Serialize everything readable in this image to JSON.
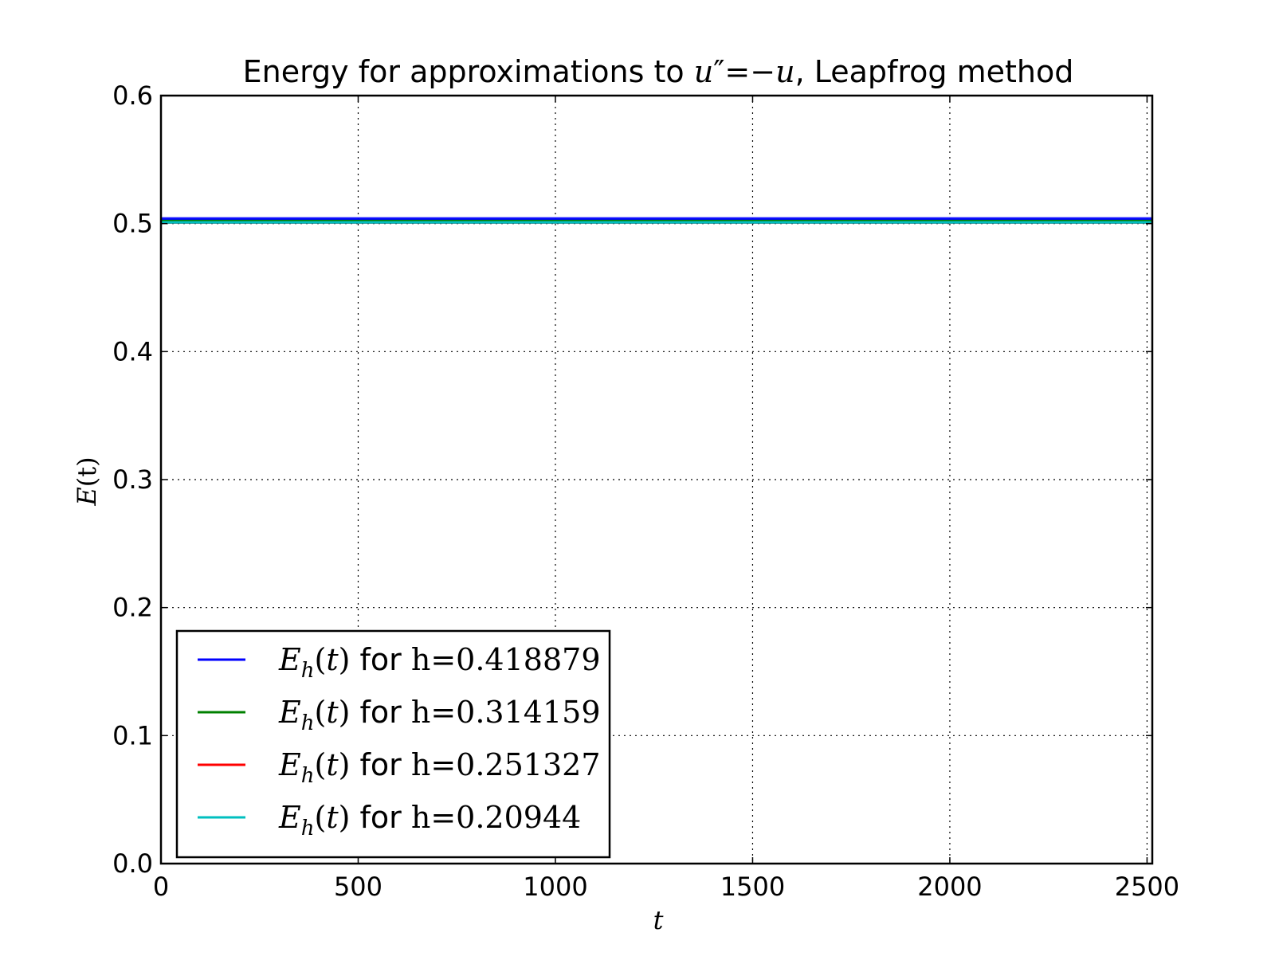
{
  "chart_data": {
    "type": "line",
    "title": {
      "prefix": "Energy for approximations to ",
      "eq_lhs": "u",
      "eq_prime": "″",
      "eq_rhs": "=−u",
      "suffix": ", Leapfrog method"
    },
    "xlabel": "t",
    "ylabel": {
      "main": "E",
      "paren": "(t)"
    },
    "xlim": [
      0,
      2513.27
    ],
    "ylim": [
      0.0,
      0.6
    ],
    "xticks": [
      0,
      500,
      1000,
      1500,
      2000,
      2500
    ],
    "xtick_labels": [
      "0",
      "500",
      "1000",
      "1500",
      "2000",
      "2500"
    ],
    "yticks": [
      0.0,
      0.1,
      0.2,
      0.3,
      0.4,
      0.5,
      0.6
    ],
    "ytick_labels": [
      "0.0",
      "0.1",
      "0.2",
      "0.3",
      "0.4",
      "0.5",
      "0.6"
    ],
    "grid": true,
    "legend_position": "lower-left",
    "legend_word": "for",
    "series": [
      {
        "name": "E_h(t) for h=0.418879",
        "h_label": "h=0.418879",
        "color": "#0000ff",
        "x": [
          0,
          2513.27
        ],
        "y": [
          0.503,
          0.503
        ],
        "band": [
          0.5,
          0.505
        ]
      },
      {
        "name": "E_h(t) for h=0.314159",
        "h_label": "h=0.314159",
        "color": "#008000",
        "x": [
          0,
          2513.27
        ],
        "y": [
          0.502,
          0.502
        ],
        "band": [
          0.5,
          0.503
        ]
      },
      {
        "name": "E_h(t) for h=0.251327",
        "h_label": "h=0.251327",
        "color": "#ff0000",
        "x": [
          0,
          2513.27
        ],
        "y": [
          0.501,
          0.501
        ],
        "band": [
          0.5,
          0.502
        ]
      },
      {
        "name": "E_h(t) for h=0.20944",
        "h_label": "h=0.20944",
        "color": "#00bfbf",
        "x": [
          0,
          2513.27
        ],
        "y": [
          0.501,
          0.501
        ],
        "band": [
          0.5,
          0.5015
        ]
      }
    ]
  }
}
